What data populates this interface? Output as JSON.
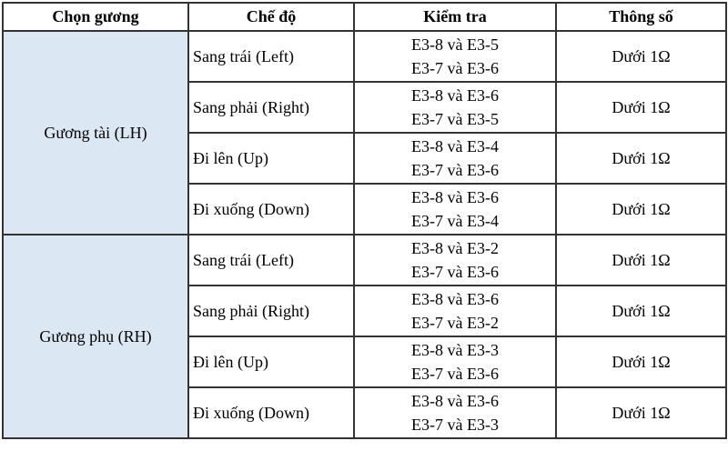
{
  "colors": {
    "mirror_cell_bg": "#dbe8f4",
    "border": "#333333"
  },
  "table": {
    "headers": [
      "Chọn gương",
      "Chế độ",
      "Kiểm tra",
      "Thông số"
    ],
    "groups": [
      {
        "mirror": "Gương tài (LH)",
        "rows": [
          {
            "mode": "Sang trái (Left)",
            "checks": [
              "E3-8 và E3-5",
              "E3-7 và E3-6"
            ],
            "spec": "Dưới 1Ω"
          },
          {
            "mode": "Sang phải (Right)",
            "checks": [
              "E3-8 và E3-6",
              "E3-7 và E3-5"
            ],
            "spec": "Dưới 1Ω"
          },
          {
            "mode": "Đi lên (Up)",
            "checks": [
              "E3-8 và E3-4",
              "E3-7 và E3-6"
            ],
            "spec": "Dưới 1Ω"
          },
          {
            "mode": "Đi xuống (Down)",
            "checks": [
              "E3-8 và E3-6",
              "E3-7 và E3-4"
            ],
            "spec": "Dưới 1Ω"
          }
        ]
      },
      {
        "mirror": "Gương phụ (RH)",
        "rows": [
          {
            "mode": "Sang trái (Left)",
            "checks": [
              "E3-8 và E3-2",
              "E3-7 và E3-6"
            ],
            "spec": "Dưới 1Ω"
          },
          {
            "mode": "Sang phải (Right)",
            "checks": [
              "E3-8 và E3-6",
              "E3-7 và E3-2"
            ],
            "spec": "Dưới 1Ω"
          },
          {
            "mode": "Đi lên (Up)",
            "checks": [
              "E3-8 và E3-3",
              "E3-7 và E3-6"
            ],
            "spec": "Dưới 1Ω"
          },
          {
            "mode": "Đi xuống (Down)",
            "checks": [
              "E3-8 và E3-6",
              "E3-7 và E3-3"
            ],
            "spec": "Dưới 1Ω"
          }
        ]
      }
    ]
  }
}
